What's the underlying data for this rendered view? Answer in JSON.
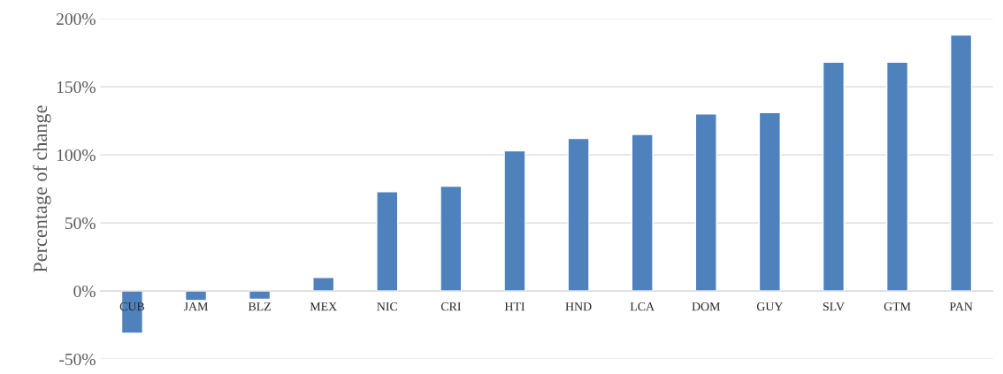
{
  "chart_data": {
    "type": "bar",
    "ylabel": "Percentage of change",
    "categories": [
      "CUB",
      "JAM",
      "BLZ",
      "MEX",
      "NIC",
      "CRI",
      "HTI",
      "HND",
      "LCA",
      "DOM",
      "GUY",
      "SLV",
      "GTM",
      "PAN"
    ],
    "values": [
      -31,
      -7,
      -6,
      10,
      73,
      77,
      103,
      112,
      115,
      130,
      131,
      168,
      168,
      188
    ],
    "color": "#4f81bd",
    "ylim": [
      -50,
      200
    ],
    "yticks": [
      {
        "value": -50,
        "label": "-50%"
      },
      {
        "value": 0,
        "label": "0%"
      },
      {
        "value": 50,
        "label": "50%"
      },
      {
        "value": 100,
        "label": "100%"
      },
      {
        "value": 150,
        "label": "150%"
      },
      {
        "value": 200,
        "label": "200%"
      }
    ],
    "grid": "y"
  }
}
